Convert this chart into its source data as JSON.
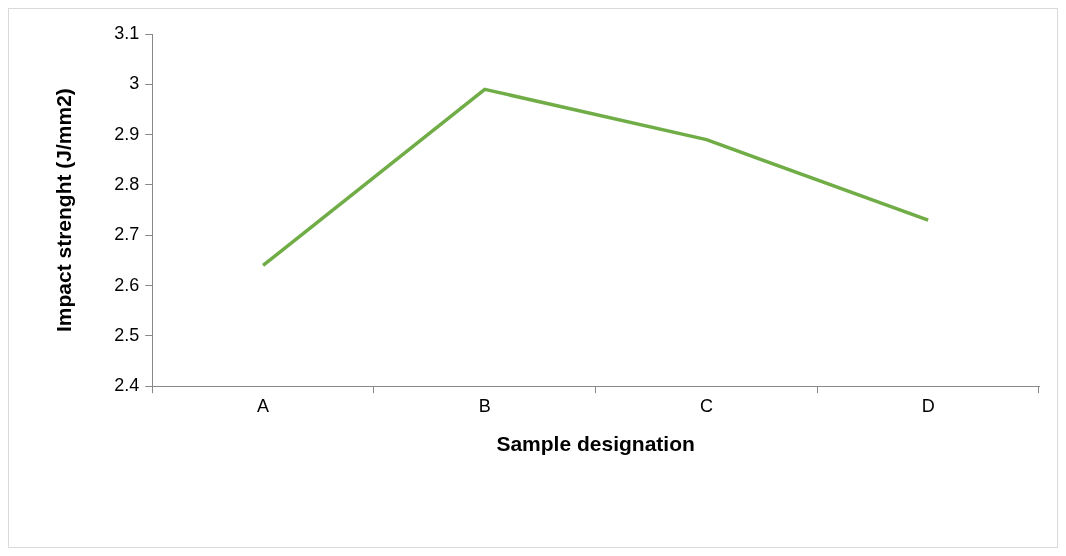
{
  "chart_data": {
    "type": "line",
    "xlabel": "Sample designation",
    "ylabel": "Impact strenght (J/mm2)",
    "categories": [
      "A",
      "B",
      "C",
      "D"
    ],
    "series": [
      {
        "color": "#70ad47",
        "values": [
          2.64,
          2.99,
          2.89,
          2.73
        ]
      }
    ],
    "ylim": [
      2.4,
      3.1
    ],
    "yticks": [
      2.4,
      2.5,
      2.6,
      2.7,
      2.8,
      2.9,
      3,
      3.1
    ],
    "grid": false,
    "legend": false,
    "marker": "none"
  }
}
